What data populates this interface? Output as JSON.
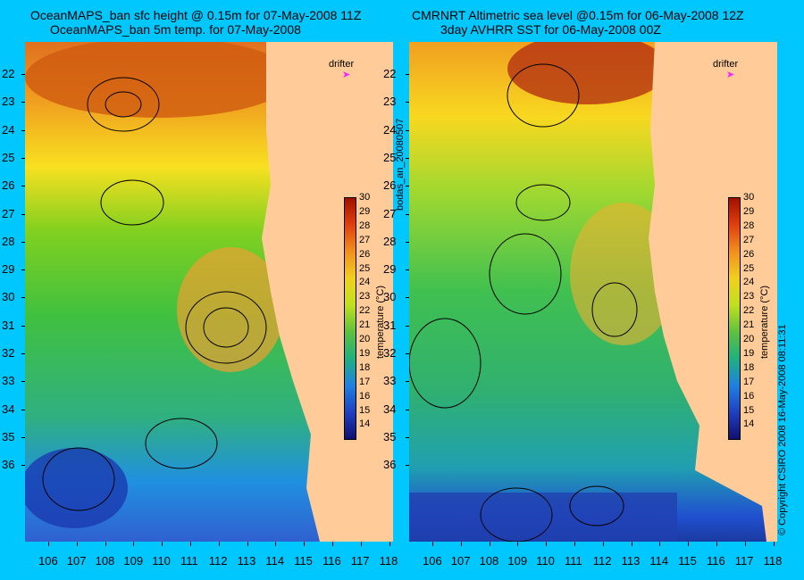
{
  "titles": {
    "left_line1": "OceanMAPS_ban sfc height @ 0.15m for 07-May-2008 11Z",
    "left_line2": "OceanMAPS_ban 5m temp. for 07-May-2008",
    "right_line1": "CMRNRT Altimetric sea level  @0.15m  for 06-May-2008 12Z",
    "right_line2": "3day AVHRR SST for 06-May-2008 00Z"
  },
  "left_vertical_label": "bodas_an_20080507",
  "copyright": "© Copyright CSIRO 2008  16-May-2008 08:11:31",
  "drifter_label": "drifter",
  "drifter_icon": "arrow-marker-icon",
  "axes": {
    "lat_labels": [
      "22",
      "23",
      "24",
      "25",
      "26",
      "27",
      "28",
      "29",
      "30",
      "31",
      "32",
      "33",
      "34",
      "35",
      "36"
    ],
    "lon_labels": [
      "106",
      "107",
      "108",
      "109",
      "110",
      "111",
      "112",
      "113",
      "114",
      "115",
      "116",
      "117",
      "118"
    ]
  },
  "colorbar": {
    "title": "temperature (°C)",
    "ticks": [
      "30",
      "29",
      "28",
      "27",
      "26",
      "25",
      "24",
      "23",
      "22",
      "21",
      "20",
      "19",
      "18",
      "17",
      "16",
      "15",
      "14"
    ],
    "range": [
      14,
      30
    ]
  },
  "colors": {
    "background": "#00c8ff",
    "land": "#ffcc99",
    "contour": "#000000",
    "isobath": "#40e0d0"
  }
}
